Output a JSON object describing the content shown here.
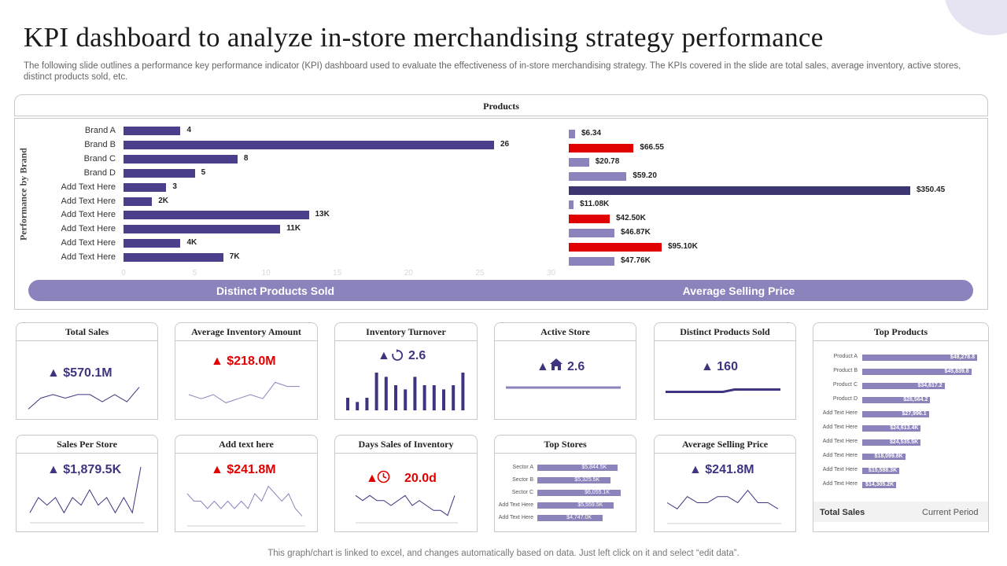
{
  "title": "KPI dashboard to analyze in-store merchandising strategy performance",
  "subtitle": "The following slide outlines a performance key performance indicator (KPI) dashboard used to evaluate the effectiveness of in-store merchandising strategy. The KPIs covered in the slide are total sales, average inventory, active stores, distinct products sold, etc.",
  "products_header": "Products",
  "footer": "This graph/chart is linked to excel, and changes automatically based on data. Just left click on it and select “edit data”.",
  "pill": {
    "left": "Distinct Products Sold",
    "right": "Average Selling Price"
  },
  "colors": {
    "purple": "#3d3580",
    "light_purple": "#8b83bc",
    "red": "#e00000",
    "dark_bar": "#3b3670"
  },
  "chart_data": [
    {
      "type": "bar",
      "orientation": "horizontal",
      "ylabel": "Performance by Brand",
      "categories": [
        "Brand A",
        "Brand B",
        "Brand C",
        "Brand D",
        "Add Text Here",
        "Add Text Here",
        "Add Text Here",
        "Add Text Here",
        "Add Text Here",
        "Add Text Here"
      ],
      "values": [
        4,
        26,
        8,
        5,
        3,
        2,
        13,
        11,
        4,
        7
      ],
      "value_labels": [
        "4",
        "26",
        "8",
        "5",
        "3",
        "2K",
        "13K",
        "11K",
        "4K",
        "7K"
      ],
      "xticks": [
        0,
        5,
        10,
        15,
        20,
        25,
        30
      ],
      "xlim": [
        0,
        30
      ],
      "color": "#4b3f8c"
    },
    {
      "type": "bar",
      "orientation": "horizontal",
      "values": [
        6.34,
        66.55,
        20.78,
        59.2,
        350.45,
        11.08,
        42.5,
        46.87,
        95.1,
        47.76
      ],
      "value_labels": [
        "$6.34",
        "$66.55",
        "$20.78",
        "$59.20",
        "$350.45",
        "$11.08K",
        "$42.50K",
        "$46.87K",
        "$95.10K",
        "$47.76K"
      ],
      "bar_colors": [
        "#8b83bc",
        "#e00000",
        "#8b83bc",
        "#8b83bc",
        "#3b3670",
        "#8b83bc",
        "#e00000",
        "#8b83bc",
        "#e00000",
        "#8b83bc"
      ],
      "xlim": [
        0,
        350.45
      ]
    },
    {
      "type": "bar",
      "orientation": "horizontal",
      "title": "Top Products",
      "categories": [
        "Product A",
        "Product B",
        "Product C",
        "Product D",
        "Add Text Here",
        "Add Text Here",
        "Add Text Here",
        "Add Text Here",
        "Add Text Here",
        "Add Text Here"
      ],
      "values": [
        48278.8,
        45839.8,
        34617.2,
        28564.2,
        27996.1,
        24613.4,
        24535.5,
        18099.8,
        15588.3,
        14305.2
      ],
      "value_labels": [
        "$48,278.8",
        "$45,839.8",
        "$34,617.2",
        "$28,564.2",
        "$27,996.1",
        "$24,613.4K",
        "$24,535.5K",
        "$18,099.8K",
        "$15,588.3K",
        "$14,305.2K"
      ]
    },
    {
      "type": "bar",
      "orientation": "horizontal",
      "title": "Top Stores",
      "categories": [
        "Sector A",
        "Sector B",
        "Sector C",
        "Add Text Here",
        "Add Text Here"
      ],
      "values": [
        5844.5,
        5325.5,
        6055.1,
        5559.5,
        4747
      ],
      "value_labels": [
        "$5,844.5K",
        "$5,325.5K",
        "$6,055.1K",
        "$5,559.5K",
        "$4,747.0K"
      ]
    },
    {
      "type": "line",
      "title": "Total Sales",
      "values": [
        3,
        6,
        7,
        6,
        7,
        7,
        5,
        7,
        5,
        9
      ]
    },
    {
      "type": "line",
      "title": "Average Inventory Amount",
      "values": [
        5,
        4,
        5,
        3,
        4,
        5,
        4,
        8,
        7,
        7
      ]
    },
    {
      "type": "bar",
      "title": "Inventory Turnover",
      "values": [
        3,
        2,
        3,
        9,
        8,
        6,
        5,
        8,
        6,
        6,
        5,
        6,
        9
      ]
    },
    {
      "type": "line",
      "title": "Active Store",
      "values": [
        5,
        5,
        5,
        5,
        5,
        5,
        5,
        5,
        5,
        5
      ]
    },
    {
      "type": "line",
      "title": "Distinct Products Sold",
      "values": [
        3,
        3,
        3,
        3,
        3,
        3,
        5,
        5,
        5,
        5,
        5
      ]
    },
    {
      "type": "line",
      "title": "Sales Per Store",
      "values": [
        4,
        6,
        5,
        6,
        4,
        6,
        5,
        7,
        5,
        6,
        4,
        6,
        4,
        10
      ]
    },
    {
      "type": "line",
      "title": "Add text here",
      "values": [
        7,
        6,
        6,
        5,
        6,
        5,
        6,
        5,
        6,
        5,
        7,
        6,
        8,
        7,
        6,
        7,
        5,
        4
      ]
    },
    {
      "type": "line",
      "title": "Days Sales of Inventory",
      "values": [
        5,
        4,
        5,
        4,
        4,
        3,
        4,
        5,
        3,
        4,
        3,
        2,
        2,
        1,
        5
      ]
    },
    {
      "type": "line",
      "title": "Average Selling Price",
      "values": [
        7,
        6,
        8,
        7,
        7,
        8,
        8,
        7,
        9,
        7,
        7,
        6
      ]
    }
  ],
  "kpis": {
    "total_sales": {
      "title": "Total Sales",
      "value": "▲ $570.1M"
    },
    "avg_inventory": {
      "title": "Average Inventory Amount",
      "value": "▲ $218.0M"
    },
    "inventory_turnover": {
      "title": "Inventory Turnover",
      "value": "2.6"
    },
    "active_store": {
      "title": "Active Store",
      "value": "2.6"
    },
    "distinct_products": {
      "title": "Distinct Products Sold",
      "value": "▲ 160"
    },
    "sales_per_store": {
      "title": "Sales Per Store",
      "value": "▲ $1,879.5K"
    },
    "add_text": {
      "title": "Add text here",
      "value": "▲ $241.8M"
    },
    "days_sales": {
      "title": "Days Sales of Inventory",
      "value": "20.0d"
    },
    "top_stores": {
      "title": "Top Stores"
    },
    "avg_selling_price": {
      "title": "Average Selling Price",
      "value": "▲ $241.8M"
    },
    "top_products": {
      "title": "Top Products",
      "footer_left": "Total Sales",
      "footer_right": "Current Period"
    }
  },
  "icons": {
    "arrow": "triangle-up-icon",
    "refresh": "refresh-icon",
    "house": "house-icon",
    "clock": "clock-icon"
  }
}
